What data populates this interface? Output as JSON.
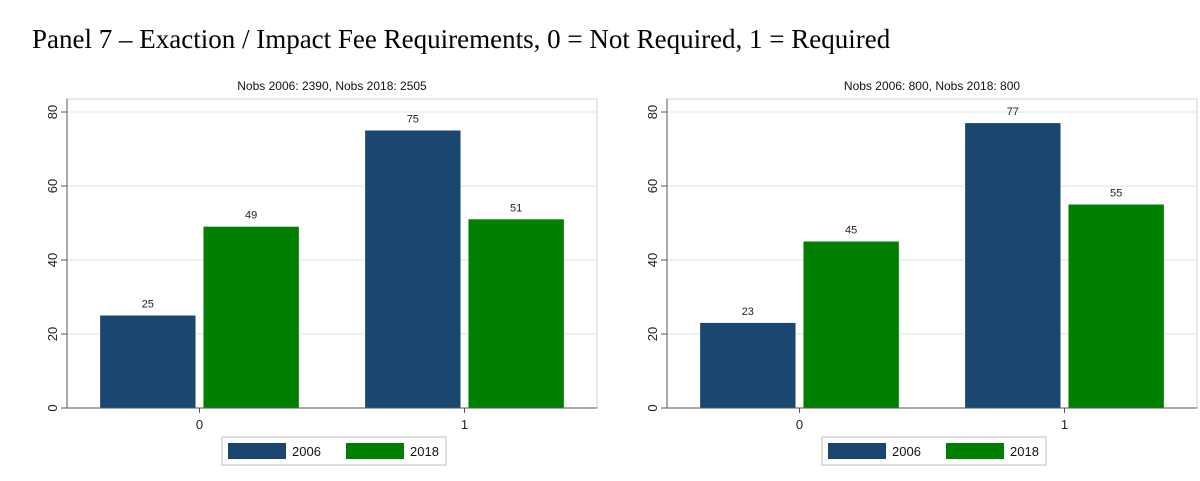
{
  "page": {
    "title": "Panel 7 – Exaction / Impact Fee Requirements, 0 = Not Required, 1 = Required"
  },
  "colors": {
    "series_2006": "#1a476f",
    "series_2018": "#008000",
    "grid": "#e2e2e2",
    "axis": "#555555"
  },
  "chart_data": [
    {
      "type": "bar",
      "title": "Nobs 2006: 2390, Nobs 2018: 2505",
      "categories": [
        "0",
        "1"
      ],
      "series": [
        {
          "name": "2006",
          "values": [
            25,
            75
          ]
        },
        {
          "name": "2018",
          "values": [
            49,
            51
          ]
        }
      ],
      "data_labels": [
        [
          "25",
          "75"
        ],
        [
          "49",
          "51"
        ]
      ],
      "y_ticks": [
        0,
        20,
        40,
        60,
        80
      ],
      "ylim": [
        0,
        80
      ],
      "xlabel": "",
      "ylabel": "",
      "grid": true,
      "legend_position": "bottom"
    },
    {
      "type": "bar",
      "title": "Nobs 2006: 800, Nobs 2018: 800",
      "categories": [
        "0",
        "1"
      ],
      "series": [
        {
          "name": "2006",
          "values": [
            23,
            77
          ]
        },
        {
          "name": "2018",
          "values": [
            45,
            55
          ]
        }
      ],
      "data_labels": [
        [
          "23",
          "77"
        ],
        [
          "45",
          "55"
        ]
      ],
      "y_ticks": [
        0,
        20,
        40,
        60,
        80
      ],
      "ylim": [
        0,
        80
      ],
      "xlabel": "",
      "ylabel": "",
      "grid": true,
      "legend_position": "bottom"
    }
  ]
}
